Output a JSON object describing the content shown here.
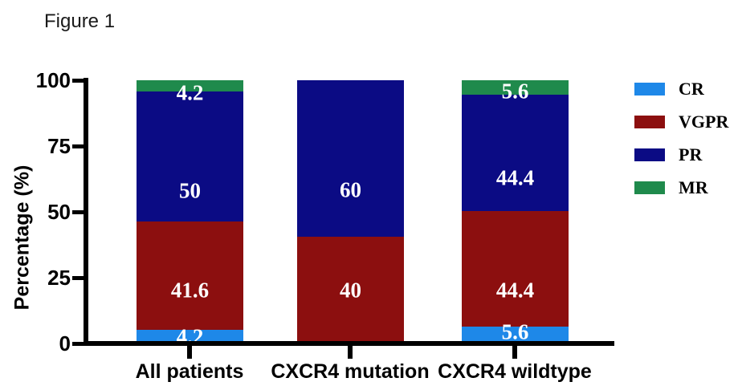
{
  "figure_label": "Figure 1",
  "chart_data": {
    "type": "bar",
    "stacked": true,
    "title": "Figure 1",
    "ylabel": "Percentage (%)",
    "xlabel": "",
    "ylim": [
      0,
      100
    ],
    "yticks": [
      0,
      25,
      50,
      75,
      100
    ],
    "grid": false,
    "legend_position": "right",
    "categories": [
      "All patients",
      "CXCR4 mutation",
      "CXCR4 wildtype"
    ],
    "series": [
      {
        "name": "CR",
        "color": "#1E88E8",
        "values": [
          4.2,
          0,
          5.6
        ],
        "label_y_pct": [
          98.5,
          null,
          96.6
        ]
      },
      {
        "name": "VGPR",
        "color": "#8C0F0F",
        "values": [
          41.6,
          40,
          44.4
        ],
        "label_y_pct": [
          80.6,
          80.6,
          80.6
        ]
      },
      {
        "name": "PR",
        "color": "#0B0B84",
        "values": [
          50,
          60,
          44.4
        ],
        "label_y_pct": [
          42.5,
          42.2,
          37.5
        ]
      },
      {
        "name": "MR",
        "color": "#1F8A4C",
        "values": [
          4.2,
          0,
          5.6
        ],
        "label_y_pct": [
          4.9,
          null,
          4.3
        ]
      }
    ],
    "legend": [
      "CR",
      "VGPR",
      "PR",
      "MR"
    ],
    "bar_value_text_color": "#FFFFFF",
    "axis_color": "#000000"
  }
}
